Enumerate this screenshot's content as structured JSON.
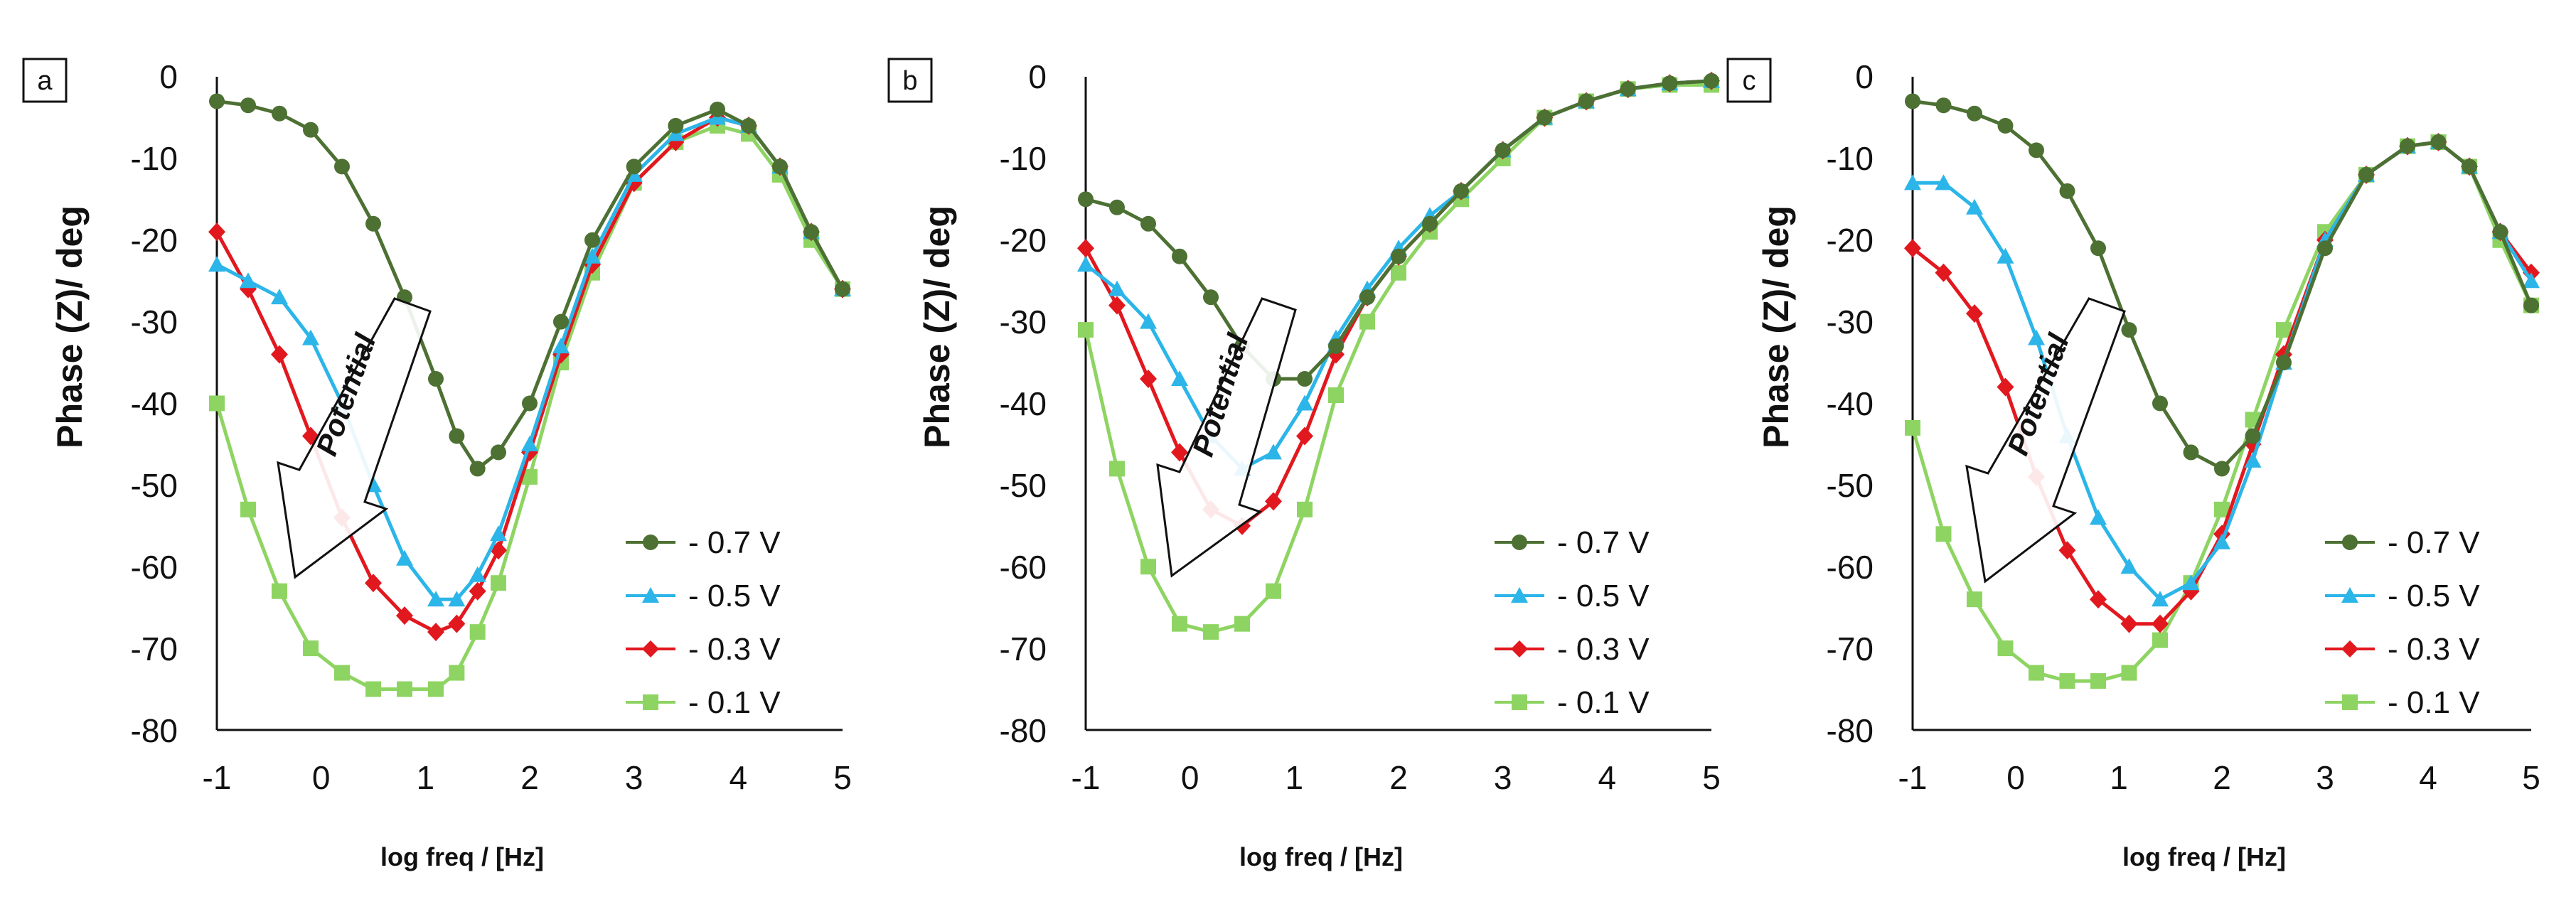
{
  "colors": {
    "m07": "#4d7033",
    "m05": "#2cb5e8",
    "m03": "#e2181f",
    "m01": "#8ed462",
    "axis": "#111111",
    "arrow_fill": "#ffffff"
  },
  "arrow_label": "Potential",
  "chart_data": [
    {
      "type": "line",
      "panel": "a",
      "xlabel": "log freq / [Hz]",
      "ylabel": "Phase (Z)/ deg",
      "xlim": [
        -1,
        5
      ],
      "ylim": [
        -80,
        0
      ],
      "xticks": [
        "-1",
        "0",
        "1",
        "2",
        "3",
        "4",
        "5"
      ],
      "yticks": [
        "0",
        "-10",
        "-20",
        "-30",
        "-40",
        "-50",
        "-60",
        "-70",
        "-80"
      ],
      "legend_position": "bottom-right",
      "series": [
        {
          "name": "- 0.7 V",
          "key": "m07",
          "marker": "circle",
          "x": [
            -1,
            -0.7,
            -0.4,
            -0.1,
            0.2,
            0.5,
            0.8,
            1.1,
            1.3,
            1.5,
            1.7,
            2.0,
            2.3,
            2.6,
            3.0,
            3.4,
            3.8,
            4.1,
            4.4,
            4.7,
            5.0
          ],
          "y": [
            -3,
            -3.5,
            -4.5,
            -6.5,
            -11,
            -18,
            -27,
            -37,
            -44,
            -48,
            -46,
            -40,
            -30,
            -20,
            -11,
            -6,
            -4,
            -6,
            -11,
            -19,
            -26
          ]
        },
        {
          "name": "- 0.5 V",
          "key": "m05",
          "marker": "triangle",
          "x": [
            -1,
            -0.7,
            -0.4,
            -0.1,
            0.2,
            0.5,
            0.8,
            1.1,
            1.3,
            1.5,
            1.7,
            2.0,
            2.3,
            2.6,
            3.0,
            3.4,
            3.8,
            4.1,
            4.4,
            4.7,
            5.0
          ],
          "y": [
            -23,
            -25,
            -27,
            -32,
            -40,
            -50,
            -59,
            -64,
            -64,
            -61,
            -56,
            -45,
            -33,
            -22,
            -12,
            -7,
            -5,
            -6,
            -11,
            -19,
            -26
          ]
        },
        {
          "name": "- 0.3 V",
          "key": "m03",
          "marker": "diamond",
          "x": [
            -1,
            -0.7,
            -0.4,
            -0.1,
            0.2,
            0.5,
            0.8,
            1.1,
            1.3,
            1.5,
            1.7,
            2.0,
            2.3,
            2.6,
            3.0,
            3.4,
            3.8,
            4.1,
            4.4,
            4.7,
            5.0
          ],
          "y": [
            -19,
            -26,
            -34,
            -44,
            -54,
            -62,
            -66,
            -68,
            -67,
            -63,
            -58,
            -46,
            -34,
            -23,
            -13,
            -8,
            -5,
            -6,
            -11,
            -19,
            -26
          ]
        },
        {
          "name": "- 0.1 V",
          "key": "m01",
          "marker": "square",
          "x": [
            -1,
            -0.7,
            -0.4,
            -0.1,
            0.2,
            0.5,
            0.8,
            1.1,
            1.3,
            1.5,
            1.7,
            2.0,
            2.3,
            2.6,
            3.0,
            3.4,
            3.8,
            4.1,
            4.4,
            4.7,
            5.0
          ],
          "y": [
            -40,
            -53,
            -63,
            -70,
            -73,
            -75,
            -75,
            -75,
            -73,
            -68,
            -62,
            -49,
            -35,
            -24,
            -13,
            -8,
            -6,
            -7,
            -12,
            -20,
            -26
          ]
        }
      ]
    },
    {
      "type": "line",
      "panel": "b",
      "xlabel": "log freq / [Hz]",
      "ylabel": "Phase (Z)/ deg",
      "xlim": [
        -1,
        5
      ],
      "ylim": [
        -80,
        0
      ],
      "xticks": [
        "-1",
        "0",
        "1",
        "2",
        "3",
        "4",
        "5"
      ],
      "yticks": [
        "0",
        "-10",
        "-20",
        "-30",
        "-40",
        "-50",
        "-60",
        "-70",
        "-80"
      ],
      "legend_position": "bottom-right",
      "series": [
        {
          "name": "- 0.7 V",
          "key": "m07",
          "marker": "circle",
          "x": [
            -1,
            -0.7,
            -0.4,
            -0.1,
            0.2,
            0.5,
            0.8,
            1.1,
            1.4,
            1.7,
            2.0,
            2.3,
            2.6,
            3.0,
            3.4,
            3.8,
            4.2,
            4.6,
            5.0
          ],
          "y": [
            -15,
            -16,
            -18,
            -22,
            -27,
            -33,
            -37,
            -37,
            -33,
            -27,
            -22,
            -18,
            -14,
            -9,
            -5,
            -3,
            -1.5,
            -0.8,
            -0.5
          ]
        },
        {
          "name": "- 0.5 V",
          "key": "m05",
          "marker": "triangle",
          "x": [
            -1,
            -0.7,
            -0.4,
            -0.1,
            0.2,
            0.5,
            0.8,
            1.1,
            1.4,
            1.7,
            2.0,
            2.3,
            2.6,
            3.0,
            3.4,
            3.8,
            4.2,
            4.6,
            5.0
          ],
          "y": [
            -23,
            -26,
            -30,
            -37,
            -44,
            -48,
            -46,
            -40,
            -32,
            -26,
            -21,
            -17,
            -14,
            -9,
            -5,
            -3,
            -1.5,
            -0.8,
            -0.5
          ]
        },
        {
          "name": "- 0.3 V",
          "key": "m03",
          "marker": "diamond",
          "x": [
            -1,
            -0.7,
            -0.4,
            -0.1,
            0.2,
            0.5,
            0.8,
            1.1,
            1.4,
            1.7,
            2.0,
            2.3,
            2.6,
            3.0,
            3.4,
            3.8,
            4.2,
            4.6,
            5.0
          ],
          "y": [
            -21,
            -28,
            -37,
            -46,
            -53,
            -55,
            -52,
            -44,
            -34,
            -27,
            -22,
            -18,
            -14,
            -9,
            -5,
            -3,
            -1.5,
            -0.8,
            -0.5
          ]
        },
        {
          "name": "- 0.1 V",
          "key": "m01",
          "marker": "square",
          "x": [
            -1,
            -0.7,
            -0.4,
            -0.1,
            0.2,
            0.5,
            0.8,
            1.1,
            1.4,
            1.7,
            2.0,
            2.3,
            2.6,
            3.0,
            3.4,
            3.8,
            4.2,
            4.6,
            5.0
          ],
          "y": [
            -31,
            -48,
            -60,
            -67,
            -68,
            -67,
            -63,
            -53,
            -39,
            -30,
            -24,
            -19,
            -15,
            -10,
            -5,
            -3,
            -1.5,
            -1,
            -1
          ]
        }
      ]
    },
    {
      "type": "line",
      "panel": "c",
      "xlabel": "log freq / [Hz]",
      "ylabel": "Phase (Z)/ deg",
      "xlim": [
        -1,
        5
      ],
      "ylim": [
        -80,
        0
      ],
      "xticks": [
        "-1",
        "0",
        "1",
        "2",
        "3",
        "4",
        "5"
      ],
      "yticks": [
        "0",
        "-10",
        "-20",
        "-30",
        "-40",
        "-50",
        "-60",
        "-70",
        "-80"
      ],
      "legend_position": "bottom-right",
      "series": [
        {
          "name": "- 0.7 V",
          "key": "m07",
          "marker": "circle",
          "x": [
            -1,
            -0.7,
            -0.4,
            -0.1,
            0.2,
            0.5,
            0.8,
            1.1,
            1.4,
            1.7,
            2.0,
            2.3,
            2.6,
            3.0,
            3.4,
            3.8,
            4.1,
            4.4,
            4.7,
            5.0
          ],
          "y": [
            -3,
            -3.5,
            -4.5,
            -6,
            -9,
            -14,
            -21,
            -31,
            -40,
            -46,
            -48,
            -44,
            -35,
            -21,
            -12,
            -8.5,
            -8,
            -11,
            -19,
            -28
          ]
        },
        {
          "name": "- 0.5 V",
          "key": "m05",
          "marker": "triangle",
          "x": [
            -1,
            -0.7,
            -0.4,
            -0.1,
            0.2,
            0.5,
            0.8,
            1.1,
            1.4,
            1.7,
            2.0,
            2.3,
            2.6,
            3.0,
            3.4,
            3.8,
            4.1,
            4.4,
            4.7,
            5.0
          ],
          "y": [
            -13,
            -13,
            -16,
            -22,
            -32,
            -44,
            -54,
            -60,
            -64,
            -62,
            -57,
            -47,
            -35,
            -20,
            -12,
            -8.5,
            -8,
            -11,
            -19,
            -25
          ]
        },
        {
          "name": "- 0.3 V",
          "key": "m03",
          "marker": "diamond",
          "x": [
            -1,
            -0.7,
            -0.4,
            -0.1,
            0.2,
            0.5,
            0.8,
            1.1,
            1.4,
            1.7,
            2.0,
            2.3,
            2.6,
            3.0,
            3.4,
            3.8,
            4.1,
            4.4,
            4.7,
            5.0
          ],
          "y": [
            -21,
            -24,
            -29,
            -38,
            -49,
            -58,
            -64,
            -67,
            -67,
            -63,
            -56,
            -45,
            -34,
            -20,
            -12,
            -8.5,
            -8,
            -11,
            -19,
            -24
          ]
        },
        {
          "name": "- 0.1 V",
          "key": "m01",
          "marker": "square",
          "x": [
            -1,
            -0.7,
            -0.4,
            -0.1,
            0.2,
            0.5,
            0.8,
            1.1,
            1.4,
            1.7,
            2.0,
            2.3,
            2.6,
            3.0,
            3.4,
            3.8,
            4.1,
            4.4,
            4.7,
            5.0
          ],
          "y": [
            -43,
            -56,
            -64,
            -70,
            -73,
            -74,
            -74,
            -73,
            -69,
            -62,
            -53,
            -42,
            -31,
            -19,
            -12,
            -8.5,
            -8,
            -11,
            -20,
            -28
          ]
        }
      ]
    }
  ]
}
